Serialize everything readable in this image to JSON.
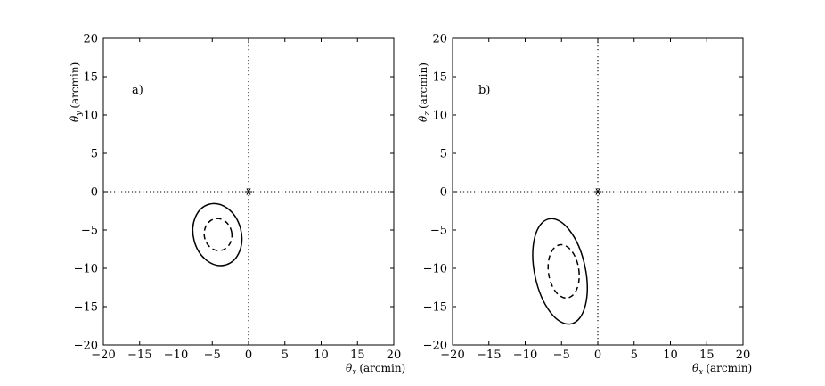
{
  "chart_data": [
    {
      "type": "scatter",
      "panel_label": "a)",
      "xlabel": "θx (arcmin)",
      "xlabel_symbol": "θ",
      "xlabel_sub": "x",
      "xlabel_unit": "(arcmin)",
      "ylabel": "θy (arcmin)",
      "ylabel_symbol": "θ",
      "ylabel_sub": "y",
      "ylabel_unit": "(arcmin)",
      "xlim": [
        -20,
        20
      ],
      "ylim": [
        -20,
        20
      ],
      "xticks": [
        "−20",
        "−15",
        "−10",
        "−5",
        "0",
        "5",
        "10",
        "15",
        "20"
      ],
      "yticks": [
        "−20",
        "−15",
        "−10",
        "−5",
        "0",
        "5",
        "10",
        "15",
        "20"
      ],
      "xtick_values": [
        -20,
        -15,
        -10,
        -5,
        0,
        5,
        10,
        15,
        20
      ],
      "ytick_values": [
        -20,
        -15,
        -10,
        -5,
        0,
        5,
        10,
        15,
        20
      ],
      "reference_lines": {
        "x": 0,
        "y": 0,
        "style": "dotted"
      },
      "marker": {
        "x": 0,
        "y": 0,
        "symbol": "asterisk"
      },
      "contours": [
        {
          "style": "solid",
          "center": [
            -4.3,
            -5.6
          ],
          "rx": 3.3,
          "ry": 4.1,
          "rotation_deg": -15
        },
        {
          "style": "dashed",
          "center": [
            -4.2,
            -5.6
          ],
          "rx": 1.9,
          "ry": 2.1,
          "rotation_deg": -10
        }
      ],
      "grid": false
    },
    {
      "type": "scatter",
      "panel_label": "b)",
      "xlabel": "θx (arcmin)",
      "xlabel_symbol": "θ",
      "xlabel_sub": "x",
      "xlabel_unit": "(arcmin)",
      "ylabel": "θz (arcmin)",
      "ylabel_symbol": "θ",
      "ylabel_sub": "z",
      "ylabel_unit": "(arcmin)",
      "xlim": [
        -20,
        20
      ],
      "ylim": [
        -20,
        20
      ],
      "xticks": [
        "−20",
        "−15",
        "−10",
        "−5",
        "0",
        "5",
        "10",
        "15",
        "20"
      ],
      "yticks": [
        "−20",
        "−15",
        "−10",
        "−5",
        "0",
        "5",
        "10",
        "15",
        "20"
      ],
      "xtick_values": [
        -20,
        -15,
        -10,
        -5,
        0,
        5,
        10,
        15,
        20
      ],
      "ytick_values": [
        -20,
        -15,
        -10,
        -5,
        0,
        5,
        10,
        15,
        20
      ],
      "reference_lines": {
        "x": 0,
        "y": 0,
        "style": "dotted"
      },
      "marker": {
        "x": 0,
        "y": 0,
        "symbol": "asterisk"
      },
      "contours": [
        {
          "style": "solid",
          "center": [
            -5.2,
            -10.4
          ],
          "rx": 3.5,
          "ry": 7.0,
          "rotation_deg": -12
        },
        {
          "style": "dashed",
          "center": [
            -4.7,
            -10.4
          ],
          "rx": 2.1,
          "ry": 3.5,
          "rotation_deg": -8
        }
      ],
      "grid": false
    }
  ]
}
